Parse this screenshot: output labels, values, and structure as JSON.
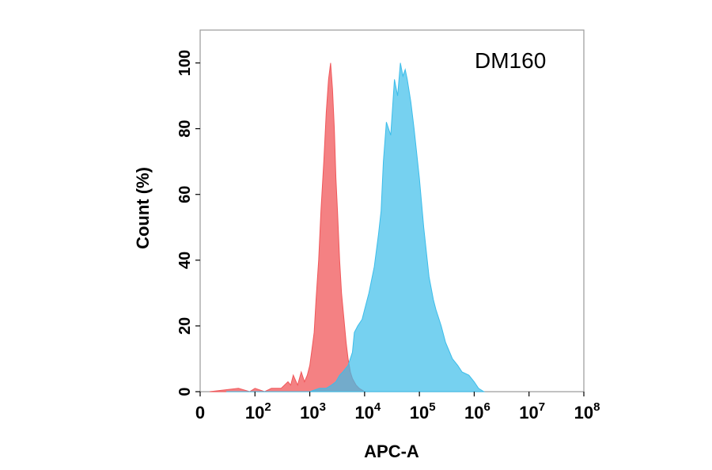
{
  "chart_data": {
    "type": "area",
    "annotation": "DM160",
    "xlabel": "APC-A",
    "ylabel": "Count  (%)",
    "x_scale": "log",
    "xlim": [
      10,
      100000000
    ],
    "ylim": [
      0,
      110
    ],
    "grid": false,
    "x_tick_labels": [
      {
        "value": 10,
        "base": "0",
        "exp": ""
      },
      {
        "value": 100,
        "base": "10",
        "exp": "2"
      },
      {
        "value": 1000,
        "base": "10",
        "exp": "3"
      },
      {
        "value": 10000,
        "base": "10",
        "exp": "4"
      },
      {
        "value": 100000,
        "base": "10",
        "exp": "5"
      },
      {
        "value": 1000000,
        "base": "10",
        "exp": "6"
      },
      {
        "value": 10000000,
        "base": "10",
        "exp": "7"
      },
      {
        "value": 100000000,
        "base": "10",
        "exp": "8"
      }
    ],
    "y_ticks": [
      "0",
      "20",
      "40",
      "60",
      "80",
      "100"
    ],
    "series": [
      {
        "color": "#f0575a",
        "opacity": 0.75,
        "x": [
          15,
          50,
          80,
          100,
          150,
          200,
          300,
          400,
          450,
          500,
          600,
          700,
          800,
          900,
          1000,
          1100,
          1200,
          1300,
          1450,
          1600,
          1800,
          2000,
          2200,
          2400,
          2600,
          2800,
          3000,
          3200,
          3500,
          3800,
          4200,
          4600,
          5000,
          5500,
          6000,
          7000,
          8000,
          10000
        ],
        "y": [
          0,
          1,
          0,
          1,
          0,
          1,
          1,
          3,
          2,
          5,
          2,
          6,
          3,
          5,
          8,
          13,
          18,
          28,
          40,
          55,
          70,
          85,
          95,
          100,
          92,
          80,
          65,
          55,
          40,
          30,
          22,
          15,
          10,
          6,
          4,
          2,
          1,
          0
        ]
      },
      {
        "color": "#3cbdea",
        "opacity": 0.7,
        "x": [
          30,
          1000,
          1500,
          2000,
          2500,
          3000,
          3500,
          4000,
          5000,
          6000,
          6500,
          7500,
          9000,
          10000,
          12000,
          15000,
          18000,
          20000,
          22000,
          25000,
          30000,
          35000,
          40000,
          45000,
          50000,
          55000,
          60000,
          70000,
          80000,
          100000,
          120000,
          150000,
          180000,
          200000,
          250000,
          300000,
          400000,
          500000,
          600000,
          800000,
          1000000,
          1200000,
          1500000
        ],
        "y": [
          0,
          0,
          1,
          1,
          2,
          3,
          5,
          6,
          8,
          12,
          18,
          20,
          22,
          25,
          30,
          38,
          48,
          55,
          70,
          82,
          78,
          95,
          90,
          100,
          96,
          98,
          95,
          88,
          80,
          65,
          50,
          35,
          28,
          25,
          20,
          15,
          10,
          8,
          6,
          5,
          3,
          1,
          0
        ]
      }
    ]
  }
}
